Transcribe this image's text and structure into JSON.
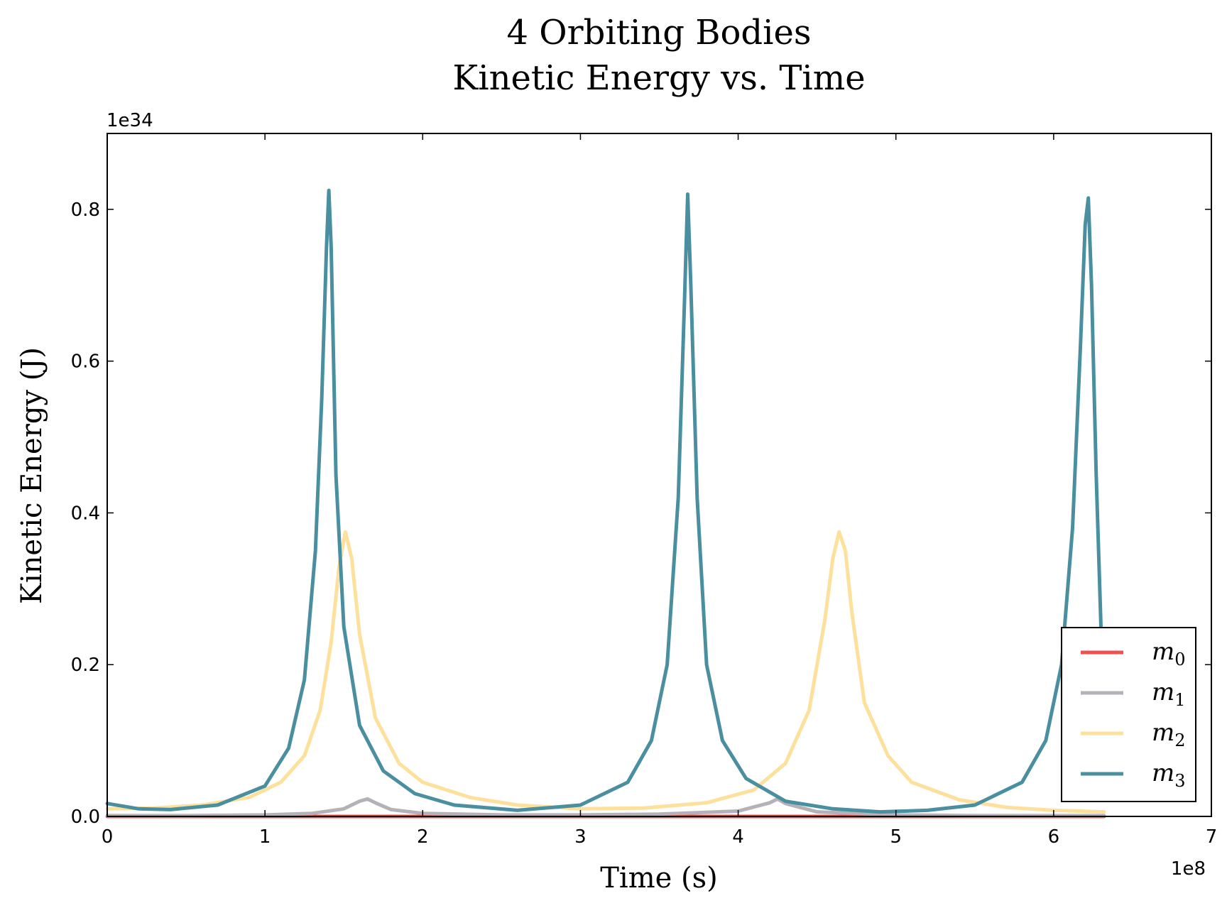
{
  "chart_data": {
    "type": "line",
    "title": "4 Orbiting Bodies",
    "subtitle": "Kinetic Energy vs. Time",
    "xlabel": "Time (s)",
    "ylabel": "Kinetic Energy (J)",
    "x_offset_label": "1e8",
    "y_offset_label": "1e34",
    "xlim": [
      0,
      7
    ],
    "ylim": [
      0,
      0.9
    ],
    "x_ticks": [
      0,
      1,
      2,
      3,
      4,
      5,
      6,
      7
    ],
    "x_tick_labels": [
      "0",
      "1",
      "2",
      "3",
      "4",
      "5",
      "6",
      "7"
    ],
    "y_ticks": [
      0.0,
      0.2,
      0.4,
      0.6,
      0.8
    ],
    "y_tick_labels": [
      "0.0",
      "0.2",
      "0.4",
      "0.6",
      "0.8"
    ],
    "grid": false,
    "legend_position": "lower-right",
    "series": [
      {
        "name": "m",
        "subscript": "0",
        "color": "#f44f4f",
        "x": [
          0,
          1,
          2,
          3,
          4,
          5,
          6,
          6.32
        ],
        "y": [
          0.0,
          0.0,
          0.0,
          0.0,
          0.0,
          0.0,
          0.0,
          0.0
        ]
      },
      {
        "name": "m",
        "subscript": "1",
        "color": "#b4b2b8",
        "x": [
          0,
          0.5,
          1.0,
          1.3,
          1.5,
          1.6,
          1.65,
          1.7,
          1.8,
          2.0,
          2.5,
          3.0,
          3.5,
          4.0,
          4.2,
          4.25,
          4.3,
          4.5,
          5.0,
          5.5,
          6.0,
          6.32
        ],
        "y": [
          0.001,
          0.001,
          0.002,
          0.004,
          0.01,
          0.02,
          0.023,
          0.018,
          0.009,
          0.004,
          0.002,
          0.002,
          0.003,
          0.007,
          0.018,
          0.023,
          0.017,
          0.006,
          0.002,
          0.001,
          0.001,
          0.001
        ]
      },
      {
        "name": "m",
        "subscript": "2",
        "color": "#fde09b",
        "x": [
          0,
          0.3,
          0.6,
          0.9,
          1.1,
          1.25,
          1.35,
          1.42,
          1.47,
          1.51,
          1.55,
          1.6,
          1.7,
          1.85,
          2.0,
          2.3,
          2.6,
          3.0,
          3.4,
          3.8,
          4.1,
          4.3,
          4.45,
          4.55,
          4.6,
          4.64,
          4.68,
          4.72,
          4.8,
          4.95,
          5.1,
          5.4,
          5.7,
          6.0,
          6.32
        ],
        "y": [
          0.01,
          0.011,
          0.015,
          0.025,
          0.045,
          0.08,
          0.14,
          0.23,
          0.33,
          0.375,
          0.34,
          0.24,
          0.13,
          0.07,
          0.045,
          0.025,
          0.015,
          0.01,
          0.011,
          0.018,
          0.035,
          0.07,
          0.14,
          0.26,
          0.34,
          0.375,
          0.35,
          0.27,
          0.15,
          0.08,
          0.045,
          0.022,
          0.012,
          0.008,
          0.006
        ]
      },
      {
        "name": "m",
        "subscript": "3",
        "color": "#4a8fa0",
        "x": [
          0,
          0.2,
          0.4,
          0.7,
          1.0,
          1.15,
          1.25,
          1.32,
          1.36,
          1.39,
          1.405,
          1.42,
          1.45,
          1.5,
          1.6,
          1.75,
          1.95,
          2.2,
          2.6,
          3.0,
          3.3,
          3.45,
          3.55,
          3.62,
          3.66,
          3.68,
          3.7,
          3.74,
          3.8,
          3.9,
          4.05,
          4.3,
          4.6,
          4.9,
          5.2,
          5.5,
          5.8,
          5.95,
          6.05,
          6.12,
          6.17,
          6.2,
          6.22,
          6.24,
          6.27,
          6.3
        ],
        "y": [
          0.017,
          0.01,
          0.009,
          0.015,
          0.04,
          0.09,
          0.18,
          0.35,
          0.55,
          0.75,
          0.825,
          0.75,
          0.45,
          0.25,
          0.12,
          0.06,
          0.03,
          0.015,
          0.008,
          0.015,
          0.045,
          0.1,
          0.2,
          0.42,
          0.68,
          0.82,
          0.7,
          0.42,
          0.2,
          0.1,
          0.05,
          0.02,
          0.01,
          0.006,
          0.008,
          0.015,
          0.045,
          0.1,
          0.2,
          0.38,
          0.62,
          0.78,
          0.815,
          0.7,
          0.45,
          0.25
        ]
      }
    ]
  }
}
